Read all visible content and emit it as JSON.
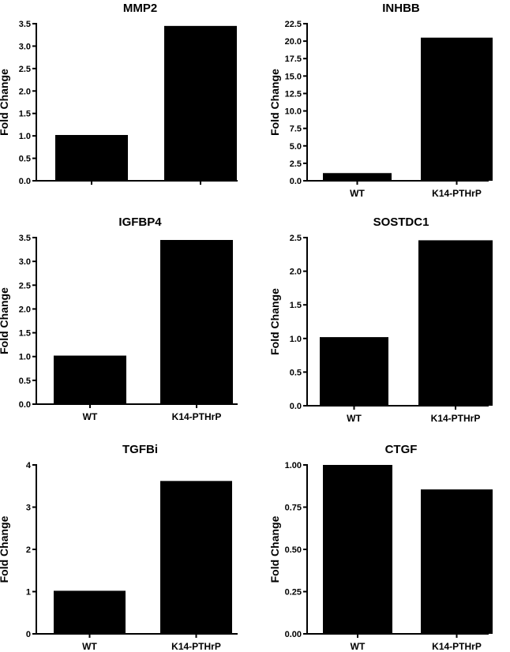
{
  "chart_data": [
    {
      "type": "bar",
      "title": "MMP2",
      "ylabel": "Fold Change",
      "xlabel": "",
      "categories": [
        "",
        ""
      ],
      "values": [
        1.02,
        3.45
      ],
      "ylim": [
        0,
        3.5
      ],
      "yticks": [
        "0.0",
        "0.5",
        "1.0",
        "1.5",
        "2.0",
        "2.5",
        "3.0",
        "3.5"
      ],
      "grid": false,
      "bar_color": "#000000"
    },
    {
      "type": "bar",
      "title": "INHBB",
      "ylabel": "Fold Change",
      "xlabel": "",
      "categories": [
        "WT",
        "K14-PTHrP"
      ],
      "values": [
        1.1,
        20.5
      ],
      "ylim": [
        0,
        22.5
      ],
      "yticks": [
        "0.0",
        "2.5",
        "5.0",
        "7.5",
        "10.0",
        "12.5",
        "15.0",
        "17.5",
        "20.0",
        "22.5"
      ],
      "grid": false,
      "bar_color": "#000000"
    },
    {
      "type": "bar",
      "title": "IGFBP4",
      "ylabel": "Fold Change",
      "xlabel": "",
      "categories": [
        "WT",
        "K14-PTHrP"
      ],
      "values": [
        1.02,
        3.45
      ],
      "ylim": [
        0,
        3.5
      ],
      "yticks": [
        "0.0",
        "0.5",
        "1.0",
        "1.5",
        "2.0",
        "2.5",
        "3.0",
        "3.5"
      ],
      "grid": false,
      "bar_color": "#000000"
    },
    {
      "type": "bar",
      "title": "SOSTDC1",
      "ylabel": "Fold Change",
      "xlabel": "",
      "categories": [
        "WT",
        "K14-PTHrP"
      ],
      "values": [
        1.02,
        2.46
      ],
      "ylim": [
        0,
        2.5
      ],
      "yticks": [
        "0.0",
        "0.5",
        "1.0",
        "1.5",
        "2.0",
        "2.5"
      ],
      "grid": false,
      "bar_color": "#000000"
    },
    {
      "type": "bar",
      "title": "TGFBi",
      "ylabel": "Fold Change",
      "xlabel": "",
      "categories": [
        "WT",
        "K14-PTHrP"
      ],
      "values": [
        1.02,
        3.62
      ],
      "ylim": [
        0,
        4
      ],
      "yticks": [
        "0",
        "1",
        "2",
        "3",
        "4"
      ],
      "grid": false,
      "bar_color": "#000000"
    },
    {
      "type": "bar",
      "title": "CTGF",
      "ylabel": "Fold Change",
      "xlabel": "",
      "categories": [
        "WT",
        "K14-PTHrP"
      ],
      "values": [
        1.0,
        0.855
      ],
      "ylim": [
        0,
        1
      ],
      "yticks": [
        "0.00",
        "0.25",
        "0.50",
        "0.75",
        "1.00"
      ],
      "grid": false,
      "bar_color": "#000000"
    }
  ]
}
